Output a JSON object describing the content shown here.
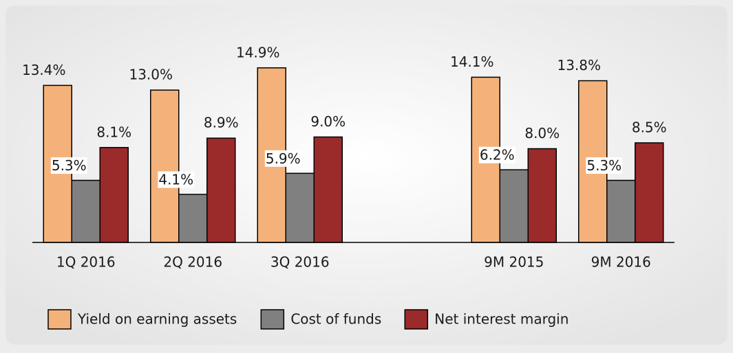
{
  "chart_data": {
    "type": "bar",
    "categories": [
      "1Q 2016",
      "2Q 2016",
      "3Q 2016",
      null,
      "9M 2015",
      "9M 2016"
    ],
    "series": [
      {
        "name": "Yield on earning assets",
        "color": "#f4b27a",
        "values": [
          13.4,
          13.0,
          14.9,
          null,
          14.1,
          13.8
        ],
        "value_labels": [
          "13.4%",
          "13.0%",
          "14.9%",
          null,
          "14.1%",
          "13.8%"
        ]
      },
      {
        "name": "Cost of funds",
        "color": "#808080",
        "values": [
          5.3,
          4.1,
          5.9,
          null,
          6.2,
          5.3
        ],
        "value_labels": [
          "5.3%",
          "4.1%",
          "5.9%",
          null,
          "6.2%",
          "5.3%"
        ]
      },
      {
        "name": "Net interest margin",
        "color": "#9b2a2b",
        "values": [
          8.1,
          8.9,
          9.0,
          null,
          8.0,
          8.5
        ],
        "value_labels": [
          "8.1%",
          "8.9%",
          "9.0%",
          null,
          "8.0%",
          "8.5%"
        ]
      }
    ],
    "ylim": [
      0,
      16
    ]
  }
}
